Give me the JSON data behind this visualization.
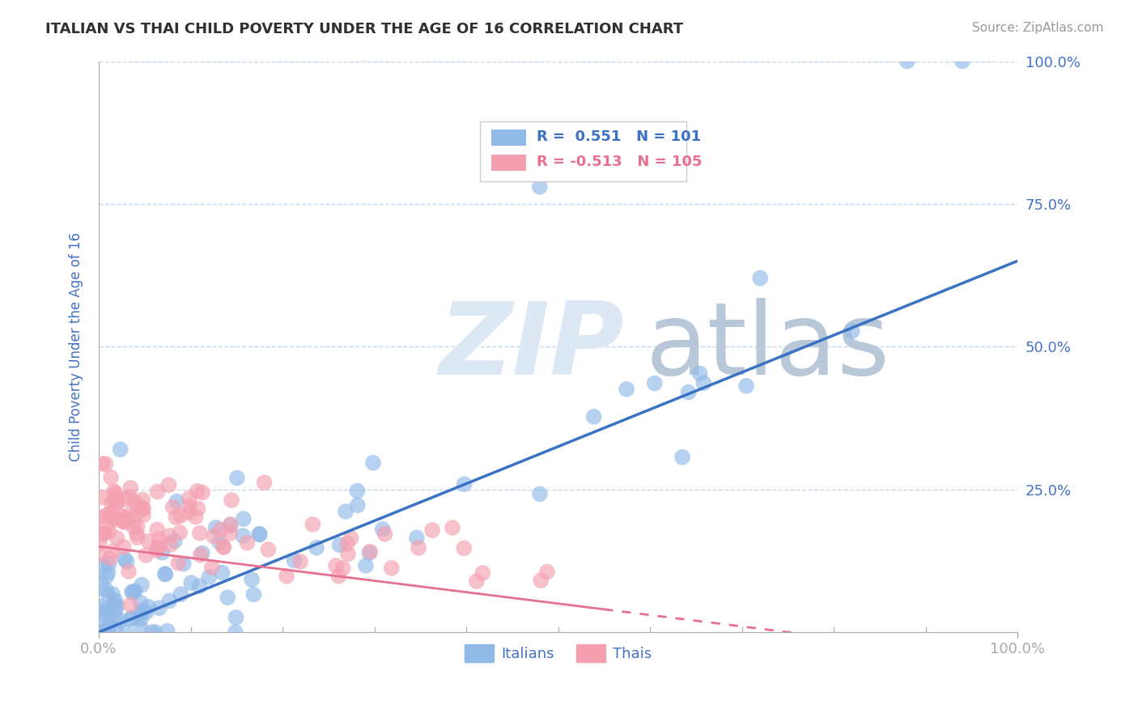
{
  "title": "ITALIAN VS THAI CHILD POVERTY UNDER THE AGE OF 16 CORRELATION CHART",
  "source_text": "Source: ZipAtlas.com",
  "ylabel": "Child Poverty Under the Age of 16",
  "xlim": [
    0,
    1.0
  ],
  "ylim": [
    0,
    1.0
  ],
  "ytick_labels": [
    "25.0%",
    "50.0%",
    "75.0%",
    "100.0%"
  ],
  "ytick_positions": [
    0.25,
    0.5,
    0.75,
    1.0
  ],
  "italian_color": "#91b9e8",
  "thai_color": "#f4a0b0",
  "italian_line_color": "#3a72c4",
  "thai_line_color": "#e87090",
  "italian_R": 0.551,
  "italian_N": 101,
  "thai_R": -0.513,
  "thai_N": 105,
  "watermark_zip": "ZIP",
  "watermark_atlas": "atlas",
  "background_color": "#ffffff",
  "grid_color": "#c8d8e8",
  "title_color": "#303030",
  "axis_label_color": "#4472c4",
  "tick_label_color": "#4472c4",
  "legend_label_italians": "Italians",
  "legend_label_thais": "Thais"
}
